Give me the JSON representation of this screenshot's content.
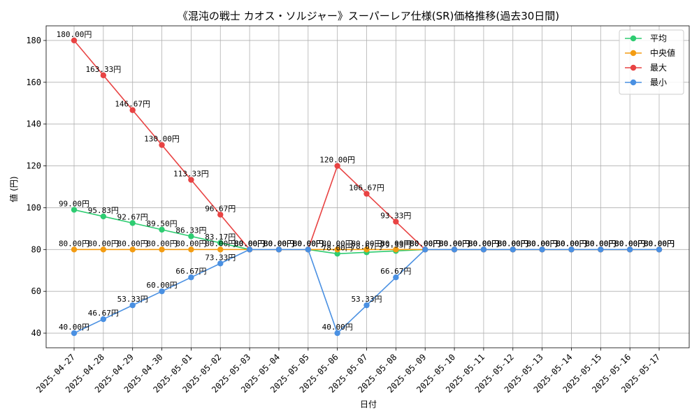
{
  "chart_data": {
    "type": "line",
    "title": "《混沌の戦士 カオス・ソルジャー》スーパーレア仕様(SR)価格推移(過去30日間)",
    "xlabel": "日付",
    "ylabel": "値 (円)",
    "categories": [
      "2025-04-27",
      "2025-04-28",
      "2025-04-29",
      "2025-04-30",
      "2025-05-01",
      "2025-05-02",
      "2025-05-03",
      "2025-05-04",
      "2025-05-05",
      "2025-05-06",
      "2025-05-07",
      "2025-05-08",
      "2025-05-09",
      "2025-05-10",
      "2025-05-11",
      "2025-05-12",
      "2025-05-13",
      "2025-05-14",
      "2025-05-15",
      "2025-05-16",
      "2025-05-17"
    ],
    "yticks": [
      40,
      60,
      80,
      100,
      120,
      140,
      160,
      180
    ],
    "ylim": [
      33,
      187
    ],
    "grid": true,
    "legend_position": "top-right",
    "label_suffix": "円",
    "series": [
      {
        "name": "平均",
        "color": "#2ecc71",
        "values": [
          99.0,
          95.83,
          92.67,
          89.5,
          86.33,
          83.17,
          80.0,
          80.0,
          80.0,
          78.0,
          78.67,
          79.33,
          80.0,
          80.0,
          80.0,
          80.0,
          80.0,
          80.0,
          80.0,
          80.0,
          80.0
        ]
      },
      {
        "name": "中央値",
        "color": "#f39c12",
        "values": [
          80.0,
          80.0,
          80.0,
          80.0,
          80.0,
          80.0,
          80.0,
          80.0,
          80.0,
          80.0,
          80.0,
          80.0,
          80.0,
          80.0,
          80.0,
          80.0,
          80.0,
          80.0,
          80.0,
          80.0,
          80.0
        ]
      },
      {
        "name": "最大",
        "color": "#e84343",
        "values": [
          180.0,
          163.33,
          146.67,
          130.0,
          113.33,
          96.67,
          80.0,
          80.0,
          80.0,
          120.0,
          106.67,
          93.33,
          80.0,
          80.0,
          80.0,
          80.0,
          80.0,
          80.0,
          80.0,
          80.0,
          80.0
        ]
      },
      {
        "name": "最小",
        "color": "#4a90e2",
        "values": [
          40.0,
          46.67,
          53.33,
          60.0,
          66.67,
          73.33,
          80.0,
          80.0,
          80.0,
          40.0,
          53.33,
          66.67,
          80.0,
          80.0,
          80.0,
          80.0,
          80.0,
          80.0,
          80.0,
          80.0,
          80.0
        ]
      }
    ]
  }
}
